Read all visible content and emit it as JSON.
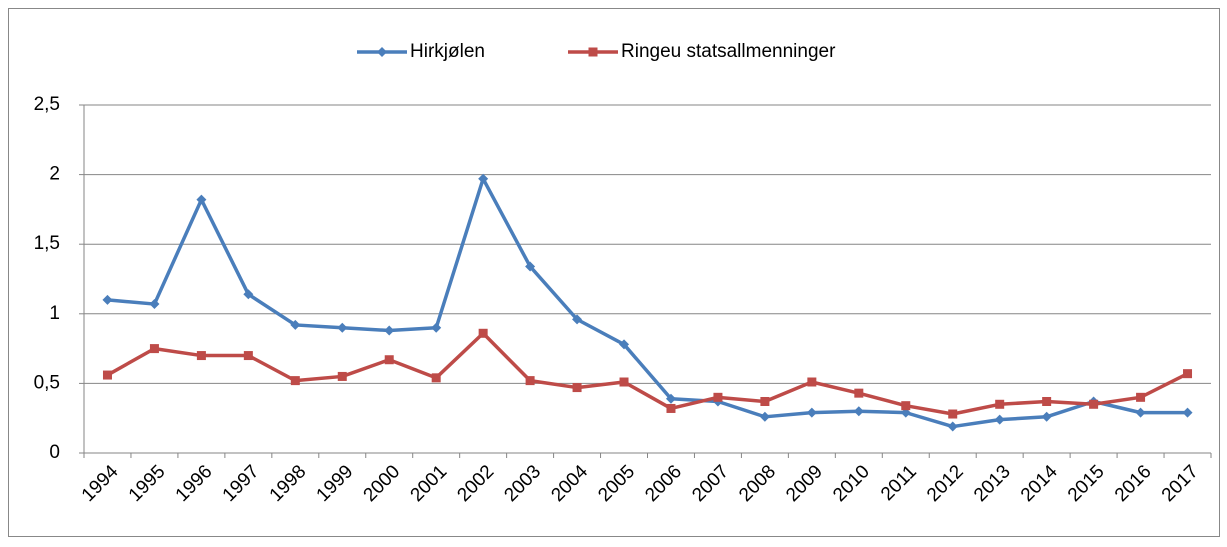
{
  "chart_data": {
    "type": "line",
    "categories": [
      "1994",
      "1995",
      "1996",
      "1997",
      "1998",
      "1999",
      "2000",
      "2001",
      "2002",
      "2003",
      "2004",
      "2005",
      "2006",
      "2007",
      "2008",
      "2009",
      "2010",
      "2011",
      "2012",
      "2013",
      "2014",
      "2015",
      "2016",
      "2017"
    ],
    "series": [
      {
        "name": "Hirkjølen",
        "color": "#4a7ebb",
        "marker": "diamond",
        "values": [
          1.1,
          1.07,
          1.82,
          1.14,
          0.92,
          0.9,
          0.88,
          0.9,
          1.97,
          1.34,
          0.96,
          0.78,
          0.39,
          0.37,
          0.26,
          0.29,
          0.3,
          0.29,
          0.19,
          0.24,
          0.26,
          0.37,
          0.29,
          0.29
        ]
      },
      {
        "name": "Ringeu statsallmenninger",
        "color": "#be4b48",
        "marker": "square",
        "values": [
          0.56,
          0.75,
          0.7,
          0.7,
          0.52,
          0.55,
          0.67,
          0.54,
          0.86,
          0.52,
          0.47,
          0.51,
          0.32,
          0.4,
          0.37,
          0.51,
          0.43,
          0.34,
          0.28,
          0.35,
          0.37,
          0.35,
          0.4,
          0.57
        ]
      }
    ],
    "ylim": [
      0,
      2.5
    ],
    "yticks": [
      0,
      {
        "value": 0.5,
        "label": "0,5"
      },
      1,
      {
        "value": 1.5,
        "label": "1,5"
      },
      2,
      {
        "value": 2.5,
        "label": "2,5"
      }
    ],
    "grid": true,
    "legend": "top"
  }
}
